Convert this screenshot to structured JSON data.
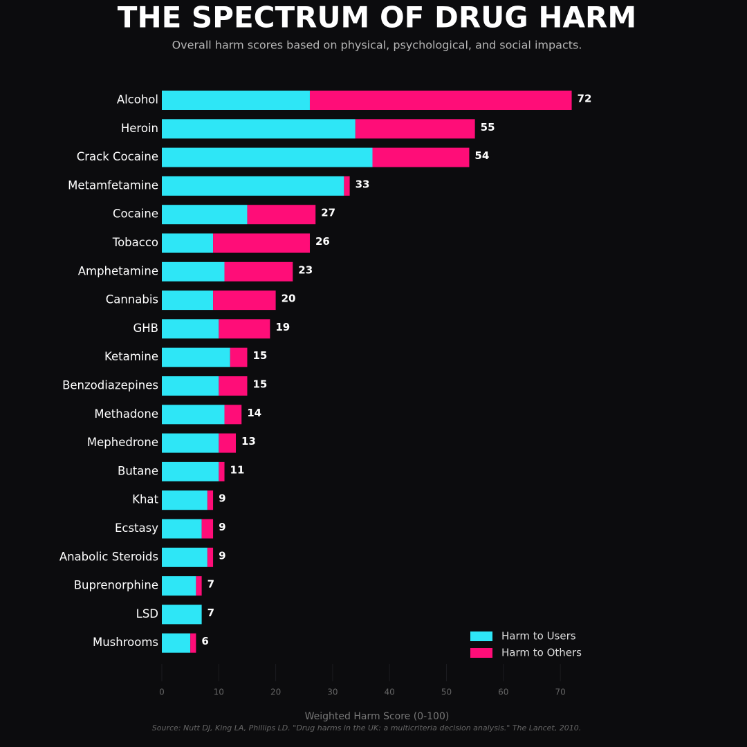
{
  "chart_data": {
    "type": "stacked-bar-horizontal",
    "title": "THE SPECTRUM OF DRUG HARM",
    "subtitle": "Overall harm scores based on physical, psychological, and social impacts.",
    "x_label": "Weighted Harm Score (0-100)",
    "source": "Source: Nutt DJ, King LA, Phillips LD. \"Drug harms in the UK: a multicriteria decision analysis.\" The Lancet, 2010.",
    "categories": [
      "Alcohol",
      "Heroin",
      "Crack Cocaine",
      "Metamfetamine",
      "Cocaine",
      "Tobacco",
      "Amphetamine",
      "Cannabis",
      "GHB",
      "Ketamine",
      "Benzodiazepines",
      "Methadone",
      "Mephedrone",
      "Butane",
      "Khat",
      "Ecstasy",
      "Anabolic Steroids",
      "Buprenorphine",
      "LSD",
      "Mushrooms"
    ],
    "series": [
      {
        "name": "Harm to Users",
        "color": "#2ee6f6",
        "values": [
          26,
          34,
          37,
          32,
          15,
          9,
          11,
          9,
          10,
          12,
          10,
          11,
          10,
          10,
          8,
          7,
          8,
          6,
          7,
          5
        ]
      },
      {
        "name": "Harm to Others",
        "color": "#ff0d78",
        "values": [
          46,
          21,
          17,
          1,
          12,
          17,
          12,
          11,
          9,
          3,
          5,
          3,
          3,
          1,
          1,
          2,
          1,
          1,
          0,
          1
        ]
      }
    ],
    "totals": [
      72,
      55,
      54,
      33,
      27,
      26,
      23,
      20,
      19,
      15,
      15,
      14,
      13,
      11,
      9,
      9,
      9,
      7,
      7,
      6
    ],
    "xlim": [
      0,
      72
    ],
    "xticks": [
      0,
      10,
      20,
      30,
      40,
      50,
      60,
      70
    ],
    "legend": "bottom-right"
  }
}
